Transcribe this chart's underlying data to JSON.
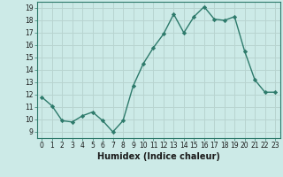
{
  "x": [
    0,
    1,
    2,
    3,
    4,
    5,
    6,
    7,
    8,
    9,
    10,
    11,
    12,
    13,
    14,
    15,
    16,
    17,
    18,
    19,
    20,
    21,
    22,
    23
  ],
  "y": [
    11.8,
    11.1,
    9.9,
    9.8,
    10.3,
    10.6,
    9.9,
    9.0,
    9.9,
    12.7,
    14.5,
    15.8,
    16.9,
    18.5,
    17.0,
    18.3,
    19.1,
    18.1,
    18.0,
    18.3,
    15.5,
    13.2,
    12.2,
    12.2
  ],
  "line_color": "#2d7a6b",
  "marker": "D",
  "marker_size": 2.2,
  "linewidth": 1.0,
  "xlabel": "Humidex (Indice chaleur)",
  "xlabel_fontsize": 7,
  "xlim": [
    -0.5,
    23.5
  ],
  "ylim": [
    8.5,
    19.5
  ],
  "yticks": [
    9,
    10,
    11,
    12,
    13,
    14,
    15,
    16,
    17,
    18,
    19
  ],
  "xticks": [
    0,
    1,
    2,
    3,
    4,
    5,
    6,
    7,
    8,
    9,
    10,
    11,
    12,
    13,
    14,
    15,
    16,
    17,
    18,
    19,
    20,
    21,
    22,
    23
  ],
  "background_color": "#cceae7",
  "plot_bg_color": "#cceae7",
  "grid_color": "#b8d4d0",
  "tick_fontsize": 5.5,
  "spine_color": "#2d7a6b"
}
